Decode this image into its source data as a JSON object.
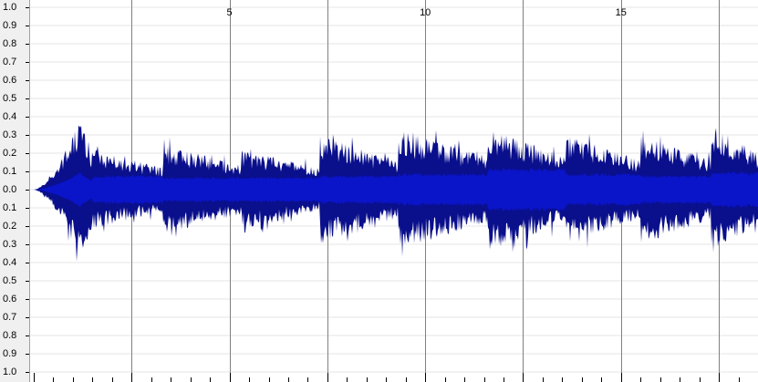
{
  "amplitude_ruler": {
    "labels": [
      "1.0",
      "0.9",
      "0.8",
      "0.7",
      "0.6",
      "0.5",
      "0.4",
      "0.3",
      "0.2",
      "0.1",
      "0.0",
      "0.1",
      "0.2",
      "0.3",
      "0.4",
      "0.5",
      "0.6",
      "0.7",
      "0.8",
      "0.9",
      "1.0"
    ]
  },
  "time_ruler": {
    "labels": [
      {
        "text": "5",
        "t": 5
      },
      {
        "text": "10",
        "t": 10
      },
      {
        "text": "15",
        "t": 15
      }
    ],
    "min": 0,
    "max": 18.5,
    "major_step": 2.5
  },
  "waveform": {
    "peak_color": "#0a0f8c",
    "rms_color": "#0a14c8",
    "grid_color": "#e6e6e6",
    "marker_color": "#808080",
    "segments": [
      {
        "from": 0.0,
        "to": 1.5,
        "peak": 0.4,
        "rms": 0.1
      },
      {
        "from": 1.5,
        "to": 3.3,
        "peak": 0.22,
        "rms": 0.08
      },
      {
        "from": 3.3,
        "to": 5.3,
        "peak": 0.25,
        "rms": 0.07
      },
      {
        "from": 5.3,
        "to": 7.3,
        "peak": 0.22,
        "rms": 0.07
      },
      {
        "from": 7.3,
        "to": 9.3,
        "peak": 0.3,
        "rms": 0.08
      },
      {
        "from": 9.3,
        "to": 11.6,
        "peak": 0.33,
        "rms": 0.09
      },
      {
        "from": 11.6,
        "to": 13.6,
        "peak": 0.34,
        "rms": 0.12
      },
      {
        "from": 13.6,
        "to": 15.5,
        "peak": 0.3,
        "rms": 0.09
      },
      {
        "from": 15.5,
        "to": 17.3,
        "peak": 0.3,
        "rms": 0.08
      },
      {
        "from": 17.3,
        "to": 18.5,
        "peak": 0.36,
        "rms": 0.1
      }
    ]
  }
}
